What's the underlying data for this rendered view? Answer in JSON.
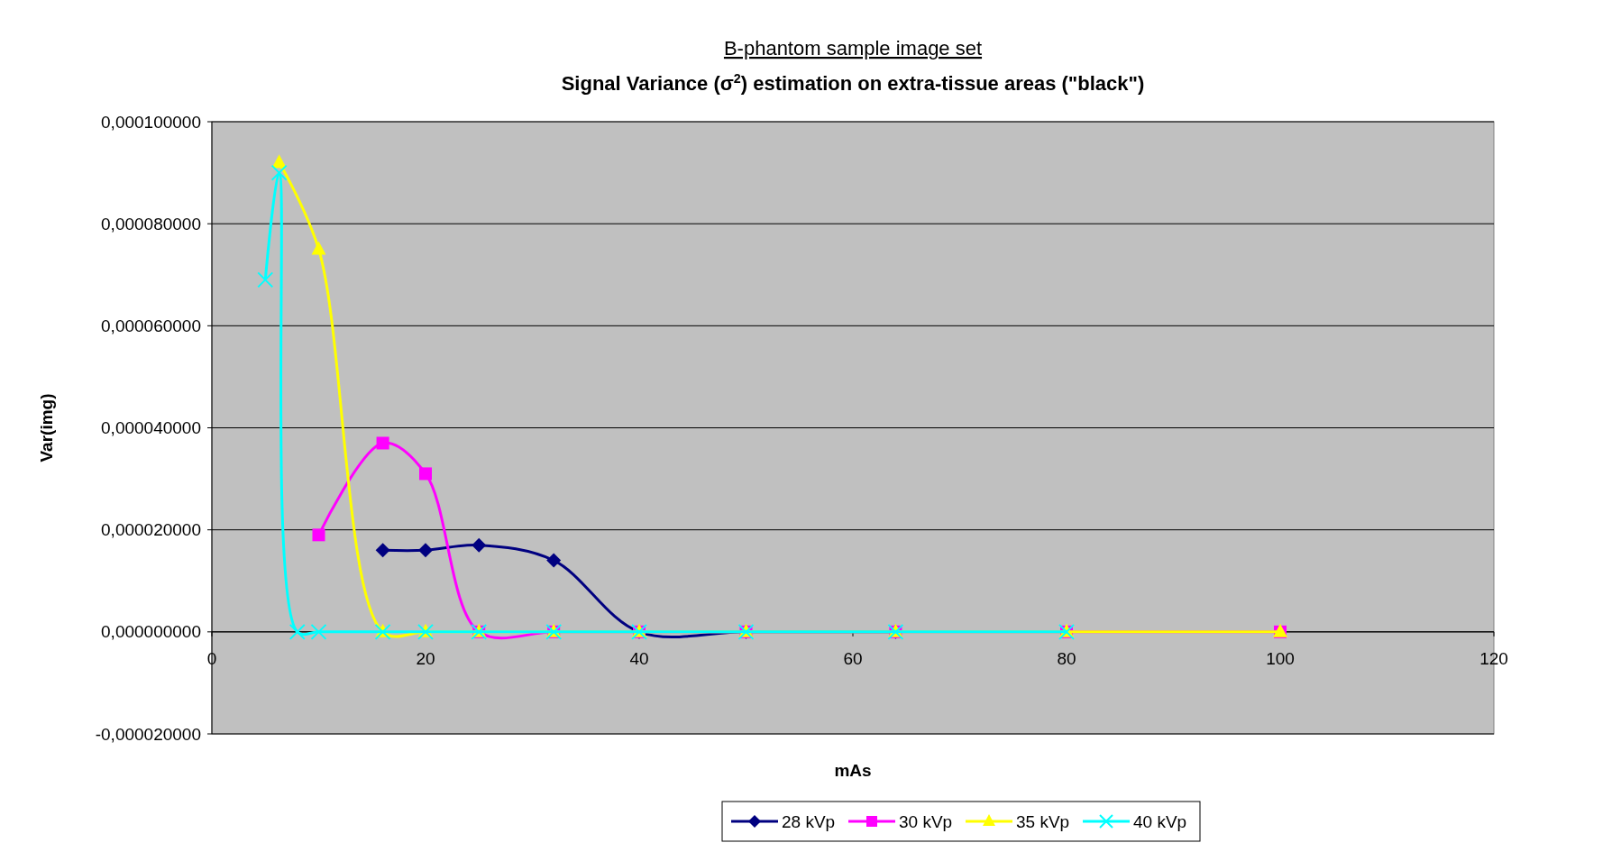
{
  "chart_data": {
    "type": "line",
    "title": "B-phantom sample image set",
    "subtitle": "Signal Variance (σ$^{2}$) estimation on extra-tissue areas (\"black\")",
    "xlabel": "mAs",
    "ylabel": "Var(img)",
    "xlim": [
      0,
      120
    ],
    "xticks": [
      0,
      20,
      40,
      60,
      80,
      100,
      120
    ],
    "ylim": [
      -2e-05,
      0.0001
    ],
    "yticks": [
      {
        "value": -2e-05,
        "label": "-0,000020000"
      },
      {
        "value": 0,
        "label": "0,000000000"
      },
      {
        "value": 2e-05,
        "label": "0,000020000"
      },
      {
        "value": 4e-05,
        "label": "0,000040000"
      },
      {
        "value": 6e-05,
        "label": "0,000060000"
      },
      {
        "value": 8e-05,
        "label": "0,000080000"
      },
      {
        "value": 0.0001,
        "label": "0,000100000"
      }
    ],
    "grid": "y",
    "legend": "bottom",
    "series": [
      {
        "name": "28 kVp",
        "color": "#000080",
        "marker": "diamond",
        "x": [
          16,
          20,
          25,
          32,
          40,
          50,
          64
        ],
        "values": [
          1.6e-05,
          1.6e-05,
          1.7e-05,
          1.4e-05,
          0,
          0,
          0
        ]
      },
      {
        "name": "30 kVp",
        "color": "#ff00ff",
        "marker": "square",
        "x": [
          10,
          16,
          20,
          25,
          32,
          40,
          50,
          64,
          80,
          100
        ],
        "values": [
          1.9e-05,
          3.7e-05,
          3.1e-05,
          0,
          0,
          0,
          0,
          0,
          0,
          0
        ]
      },
      {
        "name": "35 kVp",
        "color": "#ffff00",
        "marker": "triangle",
        "x": [
          6.3,
          10,
          16,
          20,
          25,
          32,
          40,
          50,
          64,
          80,
          100
        ],
        "values": [
          9.2e-05,
          7.5e-05,
          0,
          0,
          0,
          0,
          0,
          0,
          0,
          0,
          0
        ]
      },
      {
        "name": "40 kVp",
        "color": "#00ffff",
        "marker": "cross",
        "x": [
          5,
          6.3,
          8,
          10,
          16,
          20,
          25,
          32,
          40,
          50,
          64,
          80
        ],
        "values": [
          6.9e-05,
          9e-05,
          0,
          0,
          0,
          0,
          0,
          0,
          0,
          0,
          0,
          0
        ]
      }
    ]
  }
}
